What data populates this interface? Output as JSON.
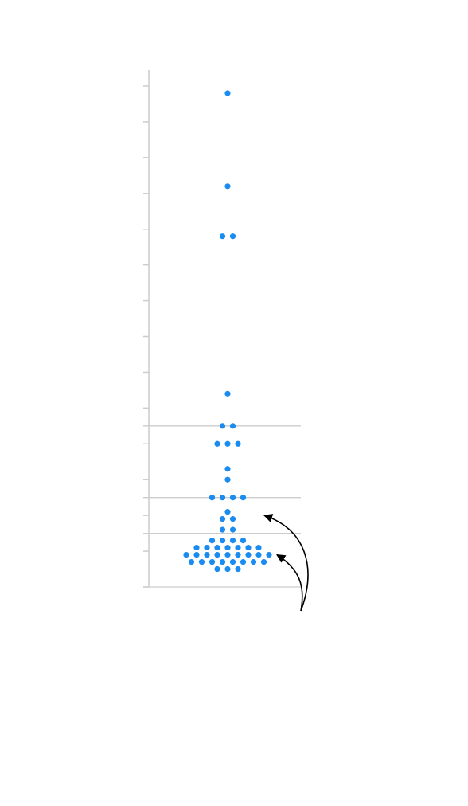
{
  "chart_data": {
    "type": "scatter",
    "subtype": "beeswarm",
    "title": "",
    "xlabel": "",
    "ylabel": "",
    "ylim": [
      0,
      14
    ],
    "yticks": [
      0,
      1,
      2,
      3,
      4,
      5,
      6,
      7,
      8,
      9,
      10,
      11,
      12,
      13,
      14
    ],
    "tick_labels_visible": false,
    "reference_lines": [
      {
        "y": 0,
        "style": "solid",
        "color": "#cccccc"
      },
      {
        "y": 1.5,
        "style": "solid",
        "color": "#cccccc"
      },
      {
        "y": 2.5,
        "style": "solid",
        "color": "#cccccc"
      },
      {
        "y": 4.5,
        "style": "solid",
        "color": "#cccccc"
      }
    ],
    "series": [
      {
        "color": "#1a8cf0",
        "values": [
          13.8,
          11.2,
          9.8,
          9.8,
          5.4,
          4.5,
          4.5,
          4.0,
          4.0,
          4.0,
          3.3,
          3.0,
          2.5,
          2.5,
          2.5,
          2.5,
          2.1,
          1.9,
          1.9,
          1.6,
          1.6,
          1.3,
          1.3,
          1.3,
          1.3,
          1.1,
          1.1,
          1.1,
          1.1,
          1.1,
          1.1,
          1.1,
          0.9,
          0.9,
          0.9,
          0.9,
          0.9,
          0.9,
          0.9,
          0.9,
          0.9,
          0.7,
          0.7,
          0.7,
          0.7,
          0.7,
          0.7,
          0.7,
          0.7,
          0.5,
          0.5,
          0.5
        ]
      }
    ],
    "annotations": [
      {
        "type": "curved-arrow",
        "color": "#000000",
        "target_y": 2.0
      },
      {
        "type": "curved-arrow",
        "color": "#000000",
        "target_y": 0.9
      }
    ]
  }
}
